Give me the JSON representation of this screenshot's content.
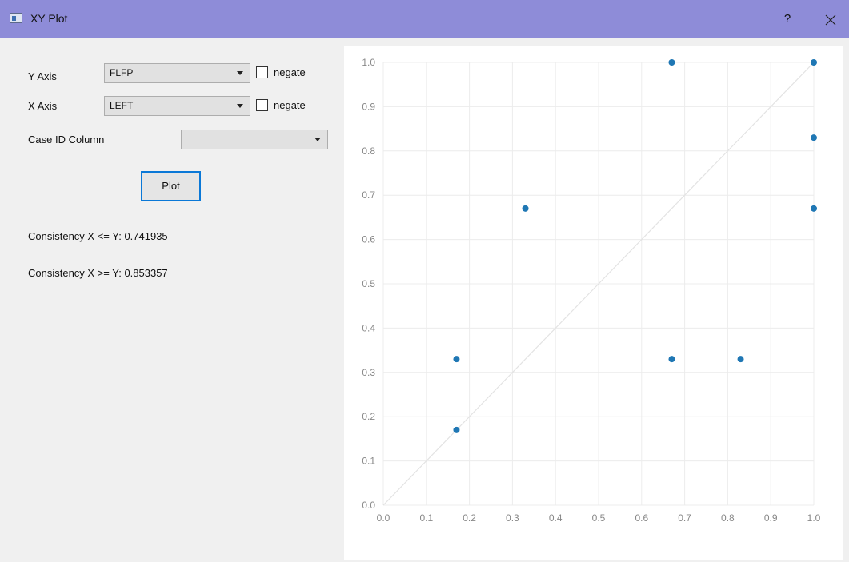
{
  "window": {
    "title": "XY Plot",
    "help": "?",
    "close_icon": "close-icon",
    "app_icon": "window-icon"
  },
  "form": {
    "y_axis": {
      "label": "Y Axis",
      "value": "FLFP",
      "negate_label": "negate",
      "negate_checked": false
    },
    "x_axis": {
      "label": "X Axis",
      "value": "LEFT",
      "negate_label": "negate",
      "negate_checked": false
    },
    "case_id": {
      "label": "Case ID Column",
      "value": ""
    },
    "plot_button": "Plot",
    "consistency_le": "Consistency X <= Y: 0.741935",
    "consistency_ge": "Consistency X >= Y: 0.853357"
  },
  "chart_data": {
    "type": "scatter",
    "xlim": [
      0.0,
      1.0
    ],
    "ylim": [
      0.0,
      1.0
    ],
    "x_ticks": [
      "0.0",
      "0.1",
      "0.2",
      "0.3",
      "0.4",
      "0.5",
      "0.6",
      "0.7",
      "0.8",
      "0.9",
      "1.0"
    ],
    "y_ticks": [
      "0.0",
      "0.1",
      "0.2",
      "0.3",
      "0.4",
      "0.5",
      "0.6",
      "0.7",
      "0.8",
      "0.9",
      "1.0"
    ],
    "grid": true,
    "diagonal_reference": true,
    "point_color": "#1f77b4",
    "points": [
      {
        "x": 0.17,
        "y": 0.17
      },
      {
        "x": 0.17,
        "y": 0.33
      },
      {
        "x": 0.33,
        "y": 0.67
      },
      {
        "x": 0.67,
        "y": 1.0
      },
      {
        "x": 0.67,
        "y": 0.33
      },
      {
        "x": 0.83,
        "y": 0.33
      },
      {
        "x": 1.0,
        "y": 1.0
      },
      {
        "x": 1.0,
        "y": 0.83
      },
      {
        "x": 1.0,
        "y": 0.67
      }
    ]
  }
}
